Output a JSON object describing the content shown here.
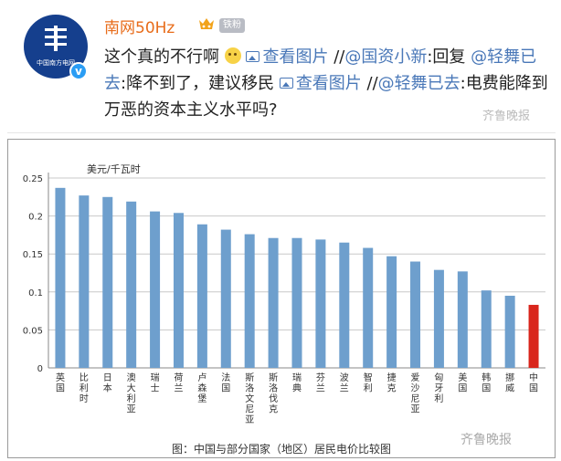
{
  "post": {
    "username": "南网50Hz",
    "fan_badge": "铁粉",
    "avatar_org": "中国南方电网",
    "verified_badge": "v",
    "text": {
      "line1_main": "这个真的不行啊",
      "view_image": "查看图片",
      "mention_sep": " //",
      "mention_1": "@国资小新",
      "reply_label": ":回复",
      "mention_2": "@轻舞已去",
      "reply_text": ":降不到了，建议移民",
      "mention_sep_2": " //",
      "mention_3": "@轻舞已去",
      "last_text": ":电费能降到万恶的资本主义水平吗?"
    },
    "watermark": "齐鲁晚报"
  },
  "chart_data": {
    "type": "bar",
    "ylabel": "美元/千瓦时",
    "ylim": [
      0,
      0.25
    ],
    "yticks": [
      "0",
      "0.05",
      "0.1",
      "0.15",
      "0.2",
      "0.25"
    ],
    "categories": [
      "英国",
      "比利时",
      "日本",
      "澳大利亚",
      "瑞士",
      "荷兰",
      "卢森堡",
      "法国",
      "斯洛文尼亚",
      "斯洛伐克",
      "瑞典",
      "芬兰",
      "波兰",
      "智利",
      "捷克",
      "爱沙尼亚",
      "匈牙利",
      "美国",
      "韩国",
      "挪威",
      "中国"
    ],
    "values": [
      0.237,
      0.227,
      0.225,
      0.219,
      0.206,
      0.204,
      0.189,
      0.182,
      0.176,
      0.171,
      0.171,
      0.169,
      0.165,
      0.158,
      0.147,
      0.14,
      0.129,
      0.127,
      0.102,
      0.095,
      0.083
    ],
    "colors": {
      "bar": "#6e9fcd",
      "highlight": "#d9261c",
      "highlight_category": "中国",
      "grid": "#c8c8c8"
    },
    "grid": true,
    "caption": "图：中国与部分国家（地区）居民电价比较图",
    "watermark": "齐鲁晚报"
  }
}
